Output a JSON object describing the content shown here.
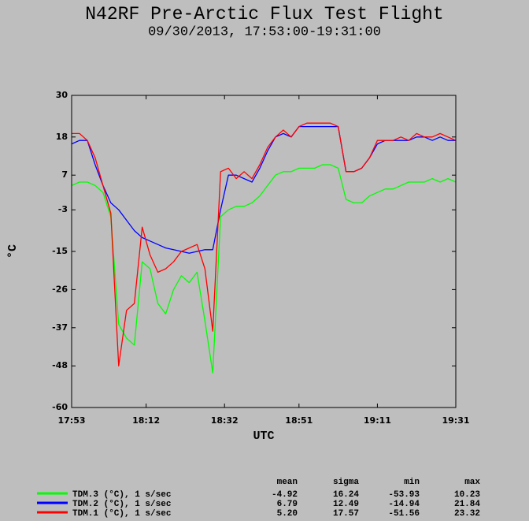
{
  "chart_data": {
    "type": "line",
    "title": "N42RF Pre-Arctic Flux Test Flight",
    "subtitle": "09/30/2013, 17:53:00-19:31:00",
    "xlabel": "UTC",
    "ylabel": "°C",
    "x": [
      "17:53",
      "17:55",
      "17:57",
      "17:59",
      "18:01",
      "18:03",
      "18:05",
      "18:07",
      "18:09",
      "18:11",
      "18:13",
      "18:15",
      "18:17",
      "18:19",
      "18:21",
      "18:23",
      "18:25",
      "18:27",
      "18:29",
      "18:31",
      "18:33",
      "18:35",
      "18:37",
      "18:39",
      "18:41",
      "18:43",
      "18:45",
      "18:47",
      "18:49",
      "18:51",
      "18:53",
      "18:55",
      "18:57",
      "18:59",
      "19:01",
      "19:03",
      "19:05",
      "19:07",
      "19:09",
      "19:11",
      "19:13",
      "19:15",
      "19:17",
      "19:19",
      "19:21",
      "19:23",
      "19:25",
      "19:27",
      "19:29",
      "19:31"
    ],
    "xlim": [
      "17:53",
      "19:31"
    ],
    "xticks": [
      "17:53",
      "18:12",
      "18:32",
      "18:51",
      "19:11",
      "19:31"
    ],
    "ylim": [
      -60,
      30
    ],
    "yticks": [
      30,
      18,
      7,
      -3,
      -15,
      -26,
      -37,
      -48,
      -60
    ],
    "stat_headers": [
      "mean",
      "sigma",
      "min",
      "max"
    ],
    "series": [
      {
        "name": "TDM.3 (°C), 1 s/sec",
        "color": "#00ff00",
        "values": [
          4,
          5,
          5,
          4,
          2,
          -5,
          -36,
          -40,
          -42,
          -18,
          -20,
          -30,
          -33,
          -26,
          -22,
          -24,
          -21,
          -35,
          -50,
          -5,
          -3,
          -2,
          -2,
          -1,
          1,
          4,
          7,
          8,
          8,
          9,
          9,
          9,
          10,
          10,
          9,
          0,
          -1,
          -1,
          1,
          2,
          3,
          3,
          4,
          5,
          5,
          5,
          6,
          5,
          6,
          5
        ],
        "stats": [
          "-4.92",
          "16.24",
          "-53.93",
          "10.23"
        ]
      },
      {
        "name": "TDM.2 (°C), 1 s/sec",
        "color": "#0000ff",
        "values": [
          16,
          17,
          17,
          10,
          4,
          -1,
          -3,
          -6,
          -9,
          -11,
          -12,
          -13,
          -14,
          -14.5,
          -15,
          -15.5,
          -15,
          -14.5,
          -14.5,
          -3,
          7,
          7,
          6,
          5,
          9,
          14,
          18,
          19,
          18,
          21,
          21,
          21,
          21,
          21,
          21,
          8,
          8,
          9,
          12,
          16,
          17,
          17,
          17,
          17,
          18,
          18,
          17,
          18,
          17,
          17
        ],
        "stats": [
          "6.79",
          "12.49",
          "-14.94",
          "21.84"
        ]
      },
      {
        "name": "TDM.1 (°C), 1 s/sec",
        "color": "#ff0000",
        "values": [
          19,
          19,
          17,
          12,
          4,
          -4,
          -48,
          -32,
          -30,
          -8,
          -16,
          -21,
          -20,
          -18,
          -15,
          -14,
          -13,
          -20,
          -38,
          8,
          9,
          6,
          8,
          6,
          10,
          15,
          18,
          20,
          18,
          21,
          22,
          22,
          22,
          22,
          21,
          8,
          8,
          9,
          12,
          17,
          17,
          17,
          18,
          17,
          19,
          18,
          18,
          19,
          18,
          17
        ],
        "stats": [
          "5.20",
          "17.57",
          "-51.56",
          "23.32"
        ]
      }
    ]
  }
}
